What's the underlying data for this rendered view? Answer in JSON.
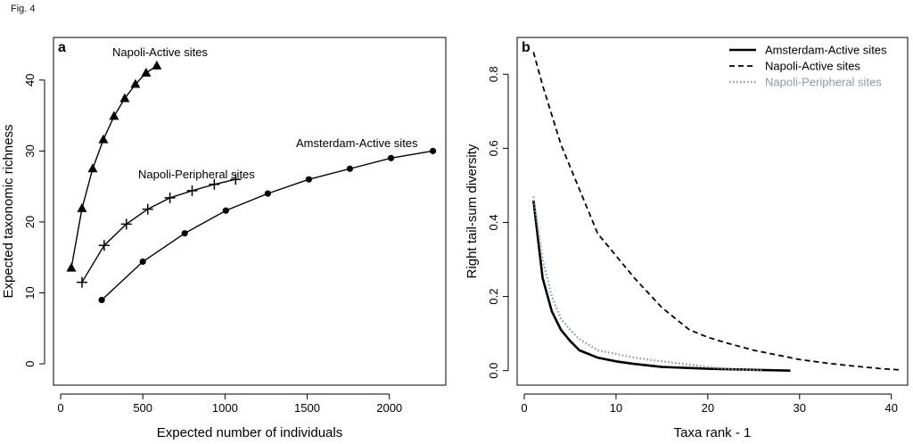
{
  "figure_label": "Fig. 4",
  "chart_data": [
    {
      "panel": "a",
      "type": "line",
      "xlabel": "Expected number of individuals",
      "ylabel": "Expected taxonomic richness",
      "xlim": [
        0,
        2300
      ],
      "ylim": [
        -2,
        45
      ],
      "xticks": [
        0,
        500,
        1000,
        1500,
        2000
      ],
      "yticks": [
        0,
        10,
        20,
        30,
        40
      ],
      "grid": false,
      "legend": "none",
      "series": [
        {
          "name": "Napoli-Active sites",
          "marker": "triangle",
          "x": [
            65,
            130,
            195,
            260,
            325,
            390,
            455,
            520,
            585
          ],
          "y": [
            13.5,
            21.9,
            27.5,
            31.6,
            34.9,
            37.4,
            39.4,
            41.0,
            42.0
          ]
        },
        {
          "name": "Napoli-Peripheral sites",
          "marker": "plus",
          "x": [
            130,
            265,
            400,
            530,
            665,
            800,
            935,
            1065
          ],
          "y": [
            11.5,
            16.7,
            19.7,
            21.8,
            23.4,
            24.4,
            25.3,
            26.0
          ]
        },
        {
          "name": "Amsterdam-Active sites",
          "marker": "circle",
          "x": [
            250,
            500,
            755,
            1005,
            1260,
            1510,
            1760,
            2010,
            2265
          ],
          "y": [
            9.0,
            14.4,
            18.4,
            21.6,
            24.0,
            26.0,
            27.5,
            29.0,
            30.0
          ]
        }
      ]
    },
    {
      "panel": "b",
      "type": "line",
      "xlabel": "Taxa rank - 1",
      "ylabel": "Right tail-sum diversity",
      "xlim": [
        0,
        41
      ],
      "ylim": [
        -0.02,
        0.88
      ],
      "xticks": [
        0,
        10,
        20,
        30,
        40
      ],
      "yticks": [
        0.0,
        0.2,
        0.4,
        0.6,
        0.8
      ],
      "ytick_labels": [
        "0.0",
        "0.2",
        "0.4",
        "0.6",
        "0.8"
      ],
      "grid": false,
      "legend": "top-right",
      "series": [
        {
          "name": "Amsterdam-Active sites",
          "style": "solid",
          "color": "#000000",
          "x": [
            1,
            2,
            3,
            4,
            5,
            6,
            7,
            8,
            10,
            12,
            15,
            20,
            25,
            29
          ],
          "y": [
            0.46,
            0.25,
            0.16,
            0.11,
            0.08,
            0.055,
            0.045,
            0.035,
            0.025,
            0.018,
            0.01,
            0.005,
            0.002,
            0.0
          ]
        },
        {
          "name": "Napoli-Active sites",
          "style": "dashed",
          "color": "#000000",
          "x": [
            1,
            2,
            3,
            4,
            5,
            6,
            8,
            10,
            12,
            15,
            18,
            20,
            22,
            25,
            28,
            30,
            33,
            36,
            39,
            41
          ],
          "y": [
            0.86,
            0.77,
            0.69,
            0.61,
            0.55,
            0.49,
            0.37,
            0.31,
            0.25,
            0.17,
            0.11,
            0.09,
            0.075,
            0.055,
            0.04,
            0.03,
            0.02,
            0.012,
            0.005,
            0.002
          ]
        },
        {
          "name": "Napoli-Peripheral sites",
          "style": "dotted",
          "color": "#8a9aa8",
          "x": [
            1,
            2,
            3,
            4,
            5,
            6,
            7,
            8,
            10,
            12,
            15,
            20,
            23,
            26
          ],
          "y": [
            0.47,
            0.3,
            0.2,
            0.14,
            0.11,
            0.085,
            0.07,
            0.055,
            0.045,
            0.035,
            0.025,
            0.01,
            0.003,
            0.0
          ]
        }
      ]
    }
  ]
}
